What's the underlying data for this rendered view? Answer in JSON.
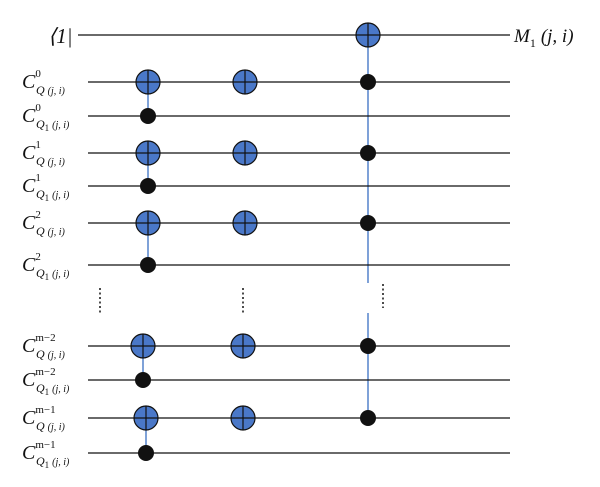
{
  "input_label": "⟨1|",
  "output_label": {
    "letter": "M",
    "sub": "1",
    "args": "(j, i)"
  },
  "wires": [
    {
      "letter": "C",
      "sup": "0",
      "sub": "Q",
      "args": "(j, i)"
    },
    {
      "letter": "C",
      "sup": "0",
      "sub": "Q",
      "sub_index": "1",
      "args": "(j, i)"
    },
    {
      "letter": "C",
      "sup": "1",
      "sub": "Q",
      "args": "(j, i)"
    },
    {
      "letter": "C",
      "sup": "1",
      "sub": "Q",
      "sub_index": "1",
      "args": "(j, i)"
    },
    {
      "letter": "C",
      "sup": "2",
      "sub": "Q",
      "args": "(j, i)"
    },
    {
      "letter": "C",
      "sup": "2",
      "sub": "Q",
      "sub_index": "1",
      "args": "(j, i)"
    },
    {
      "letter": "C",
      "sup": "m−2",
      "sub": "Q",
      "args": "(j, i)"
    },
    {
      "letter": "C",
      "sup": "m−2",
      "sub": "Q",
      "sub_index": "1",
      "args": "(j, i)"
    },
    {
      "letter": "C",
      "sup": "m−1",
      "sub": "Q",
      "args": "(j, i)"
    },
    {
      "letter": "C",
      "sup": "m−1",
      "sub": "Q",
      "sub_index": "1",
      "args": "(j, i)"
    }
  ]
}
